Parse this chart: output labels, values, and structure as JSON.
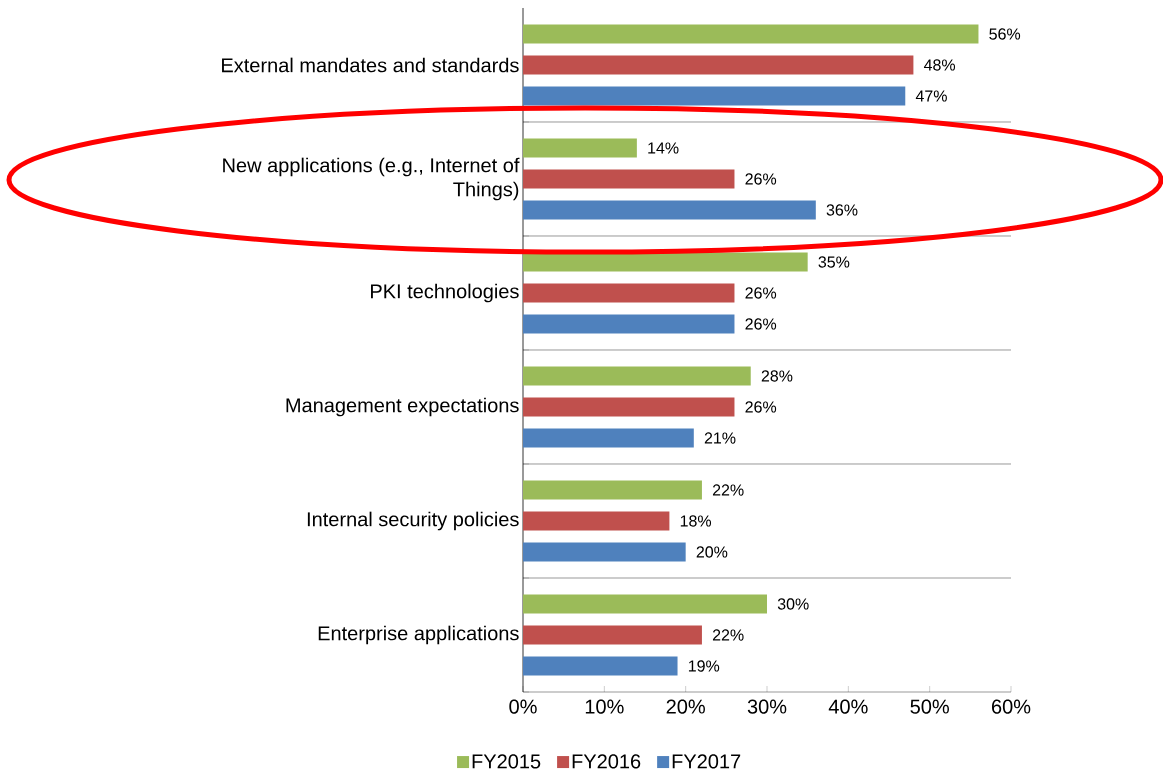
{
  "chart_data": {
    "type": "bar",
    "orientation": "horizontal",
    "categories": [
      "External mandates and standards",
      "New applications (e.g., Internet of Things)",
      "PKI technologies",
      "Management expectations",
      "Internal security policies",
      "Enterprise applications"
    ],
    "series": [
      {
        "name": "FY2015",
        "color": "#9bbb59",
        "values": [
          56,
          14,
          35,
          28,
          22,
          30
        ],
        "value_labels": [
          "56%",
          "14%",
          "35%",
          "28%",
          "22%",
          "30%"
        ]
      },
      {
        "name": "FY2016",
        "color": "#c0504d",
        "values": [
          48,
          26,
          26,
          26,
          18,
          22
        ],
        "value_labels": [
          "48%",
          "26%",
          "26%",
          "26%",
          "18%",
          "22%"
        ]
      },
      {
        "name": "FY2017",
        "color": "#4f81bd",
        "values": [
          47,
          36,
          26,
          21,
          20,
          19
        ],
        "value_labels": [
          "47%",
          "36%",
          "26%",
          "21%",
          "20%",
          "19%"
        ]
      }
    ],
    "xlim": [
      0,
      60
    ],
    "xticks": [
      {
        "value": 0,
        "label": "0%"
      },
      {
        "value": 10,
        "label": "10%"
      },
      {
        "value": 20,
        "label": "20%"
      },
      {
        "value": 30,
        "label": "30%"
      },
      {
        "value": 40,
        "label": "40%"
      },
      {
        "value": 50,
        "label": "50%"
      },
      {
        "value": 60,
        "label": "60%"
      }
    ],
    "grid": "y",
    "legend": "bottom"
  }
}
